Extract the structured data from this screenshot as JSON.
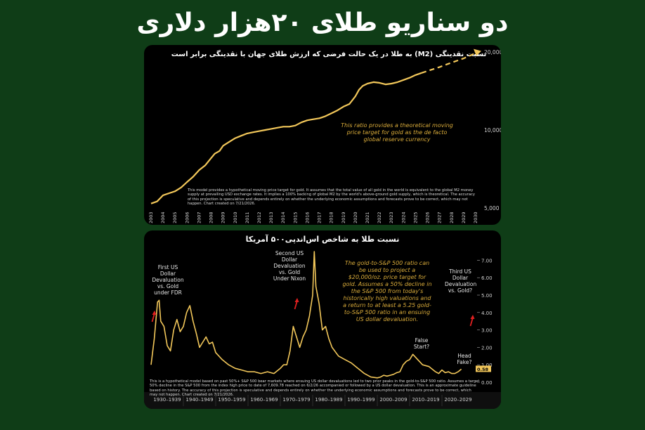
{
  "headline": "دو سناریو طلای ۲۰هزار دلاری",
  "chart_data": [
    {
      "type": "line",
      "title": "نسبت نقدینگی (M2) به طلا در یک حالت فرضی که ارزش طلای جهان با نقدینگی برابر است",
      "x_years": [
        "2003",
        "2004",
        "2005",
        "2006",
        "2007",
        "2008",
        "2009",
        "2010",
        "2011",
        "2012",
        "2013",
        "2014",
        "2015",
        "2016",
        "2017",
        "2018",
        "2019",
        "2020",
        "2021",
        "2022",
        "2023",
        "2024",
        "2025",
        "2026",
        "2027",
        "2028",
        "2029",
        "2030"
      ],
      "y_ticks": [
        "20,000",
        "10,000",
        "5,000"
      ],
      "ylim": [
        5000,
        20000
      ],
      "scale": "log",
      "series": [
        {
          "x": [
            2003.0,
            2003.5,
            2004.0,
            2004.5,
            2005.0,
            2005.5,
            2006.0,
            2006.5,
            2007.0,
            2007.5,
            2008.0,
            2008.3,
            2008.7,
            2009.0,
            2009.5,
            2010.0,
            2010.5,
            2011.0,
            2011.5,
            2012.0,
            2012.5,
            2013.0,
            2013.5,
            2014.0,
            2014.5,
            2015.0,
            2015.5,
            2016.0,
            2016.5,
            2017.0,
            2017.5,
            2018.0,
            2018.5,
            2019.0,
            2019.5,
            2020.0,
            2020.3,
            2020.6,
            2021.0,
            2021.5,
            2022.0,
            2022.5,
            2023.0,
            2023.5,
            2024.0,
            2024.5,
            2025.0,
            2025.5
          ],
          "y": [
            5200,
            5300,
            5600,
            5700,
            5800,
            6000,
            6300,
            6600,
            7000,
            7300,
            7800,
            8100,
            8300,
            8700,
            9000,
            9300,
            9500,
            9700,
            9800,
            9900,
            10000,
            10100,
            10200,
            10300,
            10300,
            10400,
            10700,
            10900,
            11000,
            11100,
            11300,
            11600,
            11900,
            12300,
            12600,
            13500,
            14300,
            14800,
            15100,
            15300,
            15200,
            15000,
            15100,
            15300,
            15600,
            15900,
            16300,
            16600
          ]
        },
        {
          "name": "projection",
          "x": [
            2025.5,
            2026.0,
            2027.0,
            2028.0,
            2029.0,
            2030.0
          ],
          "y": [
            16600,
            16900,
            17500,
            18200,
            18900,
            19800
          ]
        }
      ],
      "annotation": "This ratio provides a theoretical moving price target for gold as the de facto global reserve currency",
      "disclaimer": "This model provides a hypothetical moving price target for gold. It assumes that the total value of all gold in the world is equivalent to the global M2 money supply at prevailing USD exchange rates. It implies a 100% backing of global M2 by the world's above-ground gold supply, which is theoretical. The accuracy of this projection is speculative and depends entirely on whether the underlying economic assumptions and forecasts prove to be correct, which may not happen. Chart created on 7/21/2026.",
      "grid": false
    },
    {
      "type": "line",
      "title": "نسبت طلا به شاخص اس‌اندپی۵۰۰ آمریکا",
      "decades": [
        "1930–1939",
        "1940–1949",
        "1950–1959",
        "1960–1969",
        "1970–1979",
        "1980–1989",
        "1990–1999",
        "2000–2009",
        "2010–2019",
        "2020–2029"
      ],
      "y_ticks": [
        "7.00",
        "6.00",
        "5.00",
        "4.00",
        "3.00",
        "2.00",
        "1.00",
        "0.00"
      ],
      "ylim": [
        0,
        7.5
      ],
      "series": [
        {
          "x": [
            1930,
            1931,
            1932,
            1932.5,
            1933,
            1934,
            1935,
            1936,
            1937,
            1938,
            1939,
            1940,
            1941,
            1942,
            1943,
            1944,
            1945,
            1946,
            1947,
            1948,
            1949,
            1950,
            1952,
            1954,
            1956,
            1958,
            1960,
            1962,
            1964,
            1966,
            1968,
            1970,
            1971,
            1972,
            1973,
            1974,
            1975,
            1976,
            1977,
            1978,
            1979,
            1980,
            1980.5,
            1981,
            1982,
            1983,
            1984,
            1985,
            1986,
            1988,
            1990,
            1992,
            1994,
            1996,
            1998,
            2000,
            2001,
            2002,
            2003,
            2004,
            2005,
            2006,
            2007,
            2008,
            2009,
            2010,
            2011,
            2012,
            2014,
            2016,
            2018,
            2019,
            2020,
            2021,
            2022,
            2023,
            2024,
            2025,
            2026
          ],
          "y": [
            1.0,
            2.5,
            4.6,
            4.7,
            3.5,
            3.2,
            2.1,
            1.8,
            3.0,
            3.6,
            2.9,
            3.2,
            4.0,
            4.4,
            3.5,
            2.8,
            2.0,
            2.3,
            2.6,
            2.2,
            2.3,
            1.7,
            1.3,
            1.0,
            0.8,
            0.7,
            0.6,
            0.6,
            0.5,
            0.6,
            0.5,
            0.8,
            1.0,
            1.0,
            1.8,
            3.2,
            2.6,
            2.0,
            2.6,
            3.0,
            3.8,
            5.0,
            7.5,
            5.5,
            4.5,
            3.0,
            3.2,
            2.5,
            2.0,
            1.5,
            1.3,
            1.1,
            0.8,
            0.5,
            0.3,
            0.25,
            0.3,
            0.4,
            0.35,
            0.4,
            0.45,
            0.55,
            0.6,
            1.0,
            1.2,
            1.3,
            1.6,
            1.4,
            1.0,
            0.9,
            0.6,
            0.5,
            0.7,
            0.55,
            0.6,
            0.5,
            0.5,
            0.6,
            0.75
          ]
        }
      ],
      "current_value_label": "0.58",
      "events": [
        {
          "label": "First US Dollar Devaluation vs. Gold under FDR"
        },
        {
          "label": "Second US Dollar Devaluation vs. Gold Under Nixon"
        },
        {
          "label": "False Start?"
        },
        {
          "label": "Head Fake?"
        },
        {
          "label": "Third US Dollar Devaluation vs. Gold?"
        }
      ],
      "annotation": "The gold-to-S&P 500 ratio can be used to project a $20,000/oz. price target for gold. Assumes a 50% decline in the S&P 500 from today's historically high valuations and a return to at least a 5.25 gold-to-S&P 500 ratio in an ensuing US dollar devaluation.",
      "disclaimer": "This is a hypothetical model based on past 50%+ S&P 500 bear markets where ensuing US dollar devaluations led to two prior peaks in the gold-to-S&P 500 ratio. Assumes a target 50% decline in the S&P 500 from the index high price to date of 7,609.78 reached on 6/2/26 accompanied or followed by a US dollar devaluation. This is an approximate guideline based on history. The accuracy of this projection is speculative and depends entirely on whether the underlying economic assumptions and forecasts prove to be correct, which may not happen. Chart created on 7/21/2026.",
      "colors": {
        "line": "#f2c75a",
        "arrow": "#e02020"
      },
      "grid": false
    }
  ]
}
